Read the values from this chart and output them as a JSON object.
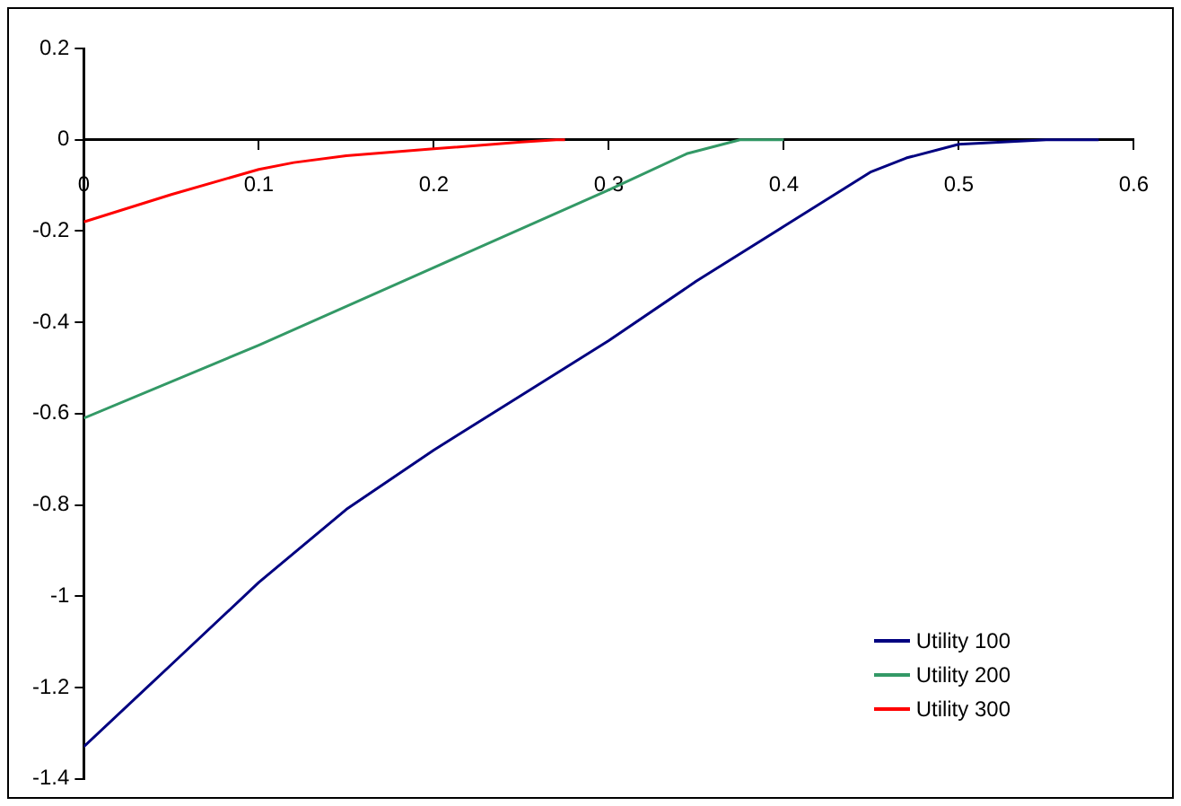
{
  "chart_data": {
    "type": "line",
    "xlim": [
      0,
      0.6
    ],
    "xticks": [
      0,
      0.1,
      0.2,
      0.3,
      0.4,
      0.5,
      0.6
    ],
    "ylim": [
      -1.4,
      0.2
    ],
    "yticks": [
      -1.4,
      -1.2,
      -1,
      -0.8,
      -0.6,
      -0.4,
      -0.2,
      0,
      0.2
    ],
    "grid": false,
    "legend": "bottom right",
    "marker": "none",
    "line_style": "solid",
    "series": [
      {
        "name": "Utility 100",
        "color": "#000080",
        "x": [
          0,
          0.05,
          0.1,
          0.15,
          0.2,
          0.25,
          0.3,
          0.35,
          0.4,
          0.45,
          0.47,
          0.5,
          0.55,
          0.58
        ],
        "values": [
          -1.33,
          -1.15,
          -0.97,
          -0.81,
          -0.68,
          -0.56,
          -0.44,
          -0.31,
          -0.19,
          -0.07,
          -0.04,
          -0.01,
          0,
          0
        ]
      },
      {
        "name": "Utility 200",
        "color": "#339966",
        "x": [
          0,
          0.1,
          0.2,
          0.3,
          0.345,
          0.375,
          0.4
        ],
        "values": [
          -0.61,
          -0.45,
          -0.28,
          -0.11,
          -0.03,
          0,
          0
        ]
      },
      {
        "name": "Utility 300",
        "color": "#ff0000",
        "x": [
          0,
          0.05,
          0.1,
          0.12,
          0.15,
          0.2,
          0.25,
          0.27,
          0.275
        ],
        "values": [
          -0.18,
          -0.12,
          -0.065,
          -0.05,
          -0.035,
          -0.02,
          -0.005,
          0,
          0
        ]
      }
    ]
  }
}
